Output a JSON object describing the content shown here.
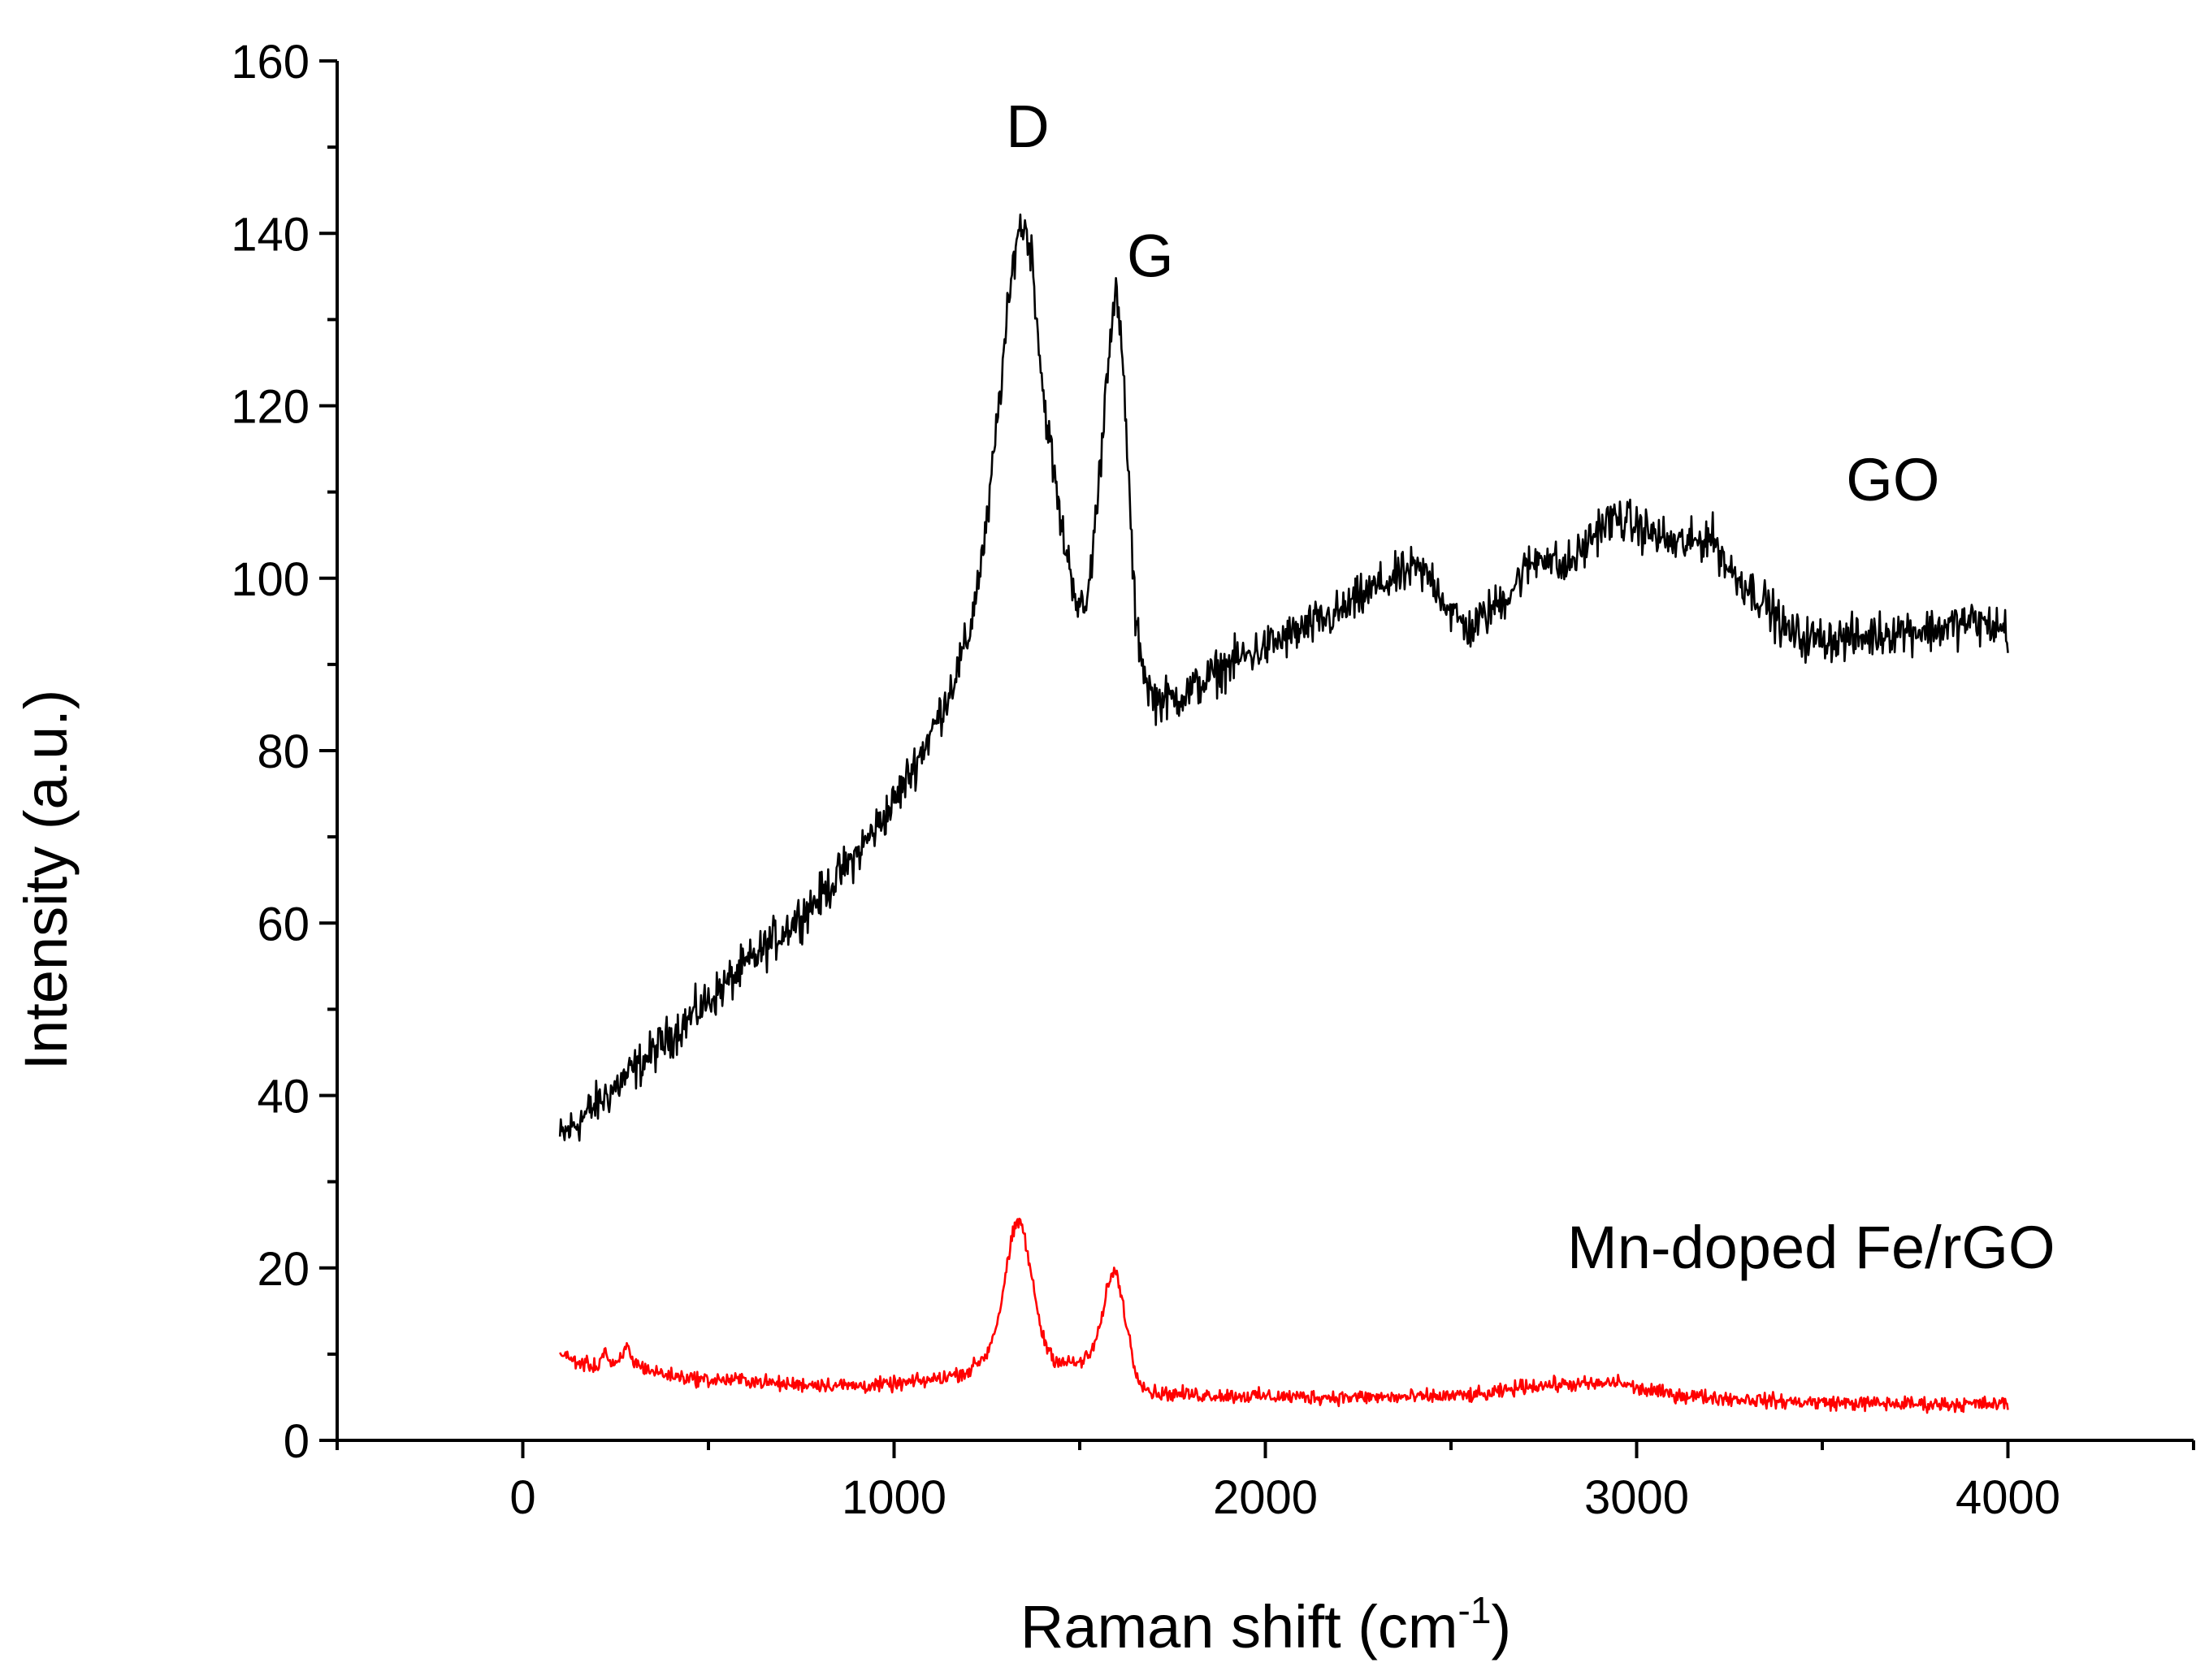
{
  "chart_data": {
    "type": "line",
    "title": "",
    "xlabel": "Raman shift (cm",
    "xlabel_superscript": "-1",
    "xlabel_suffix": ")",
    "ylabel": "Intensity (a.u.)",
    "xlim": [
      -500,
      4500
    ],
    "ylim": [
      0,
      160
    ],
    "x_ticks": [
      0,
      1000,
      2000,
      3000,
      4000
    ],
    "x_tick_labels": [
      "0",
      "1000",
      "2000",
      "3000",
      "4000"
    ],
    "x_minor_ticks": [
      -500,
      500,
      1500,
      2500,
      3500,
      4500
    ],
    "y_ticks": [
      0,
      20,
      40,
      60,
      80,
      100,
      120,
      140,
      160
    ],
    "y_tick_labels": [
      "0",
      "20",
      "40",
      "60",
      "80",
      "100",
      "120",
      "140",
      "160"
    ],
    "y_minor_ticks": [
      10,
      30,
      50,
      70,
      90,
      110,
      130,
      150
    ],
    "grid": false,
    "series": [
      {
        "name": "GO",
        "color": "#000000",
        "x": [
          100,
          200,
          300,
          400,
          500,
          600,
          700,
          800,
          900,
          1000,
          1100,
          1150,
          1200,
          1250,
          1300,
          1330,
          1350,
          1370,
          1400,
          1450,
          1500,
          1520,
          1550,
          1580,
          1600,
          1620,
          1650,
          1680,
          1700,
          1750,
          1800,
          1900,
          2000,
          2100,
          2200,
          2300,
          2350,
          2400,
          2450,
          2500,
          2550,
          2600,
          2650,
          2700,
          2750,
          2800,
          2850,
          2900,
          2950,
          3000,
          3050,
          3100,
          3150,
          3200,
          3250,
          3300,
          3350,
          3400,
          3450,
          3500,
          3600,
          3700,
          3800,
          3900,
          4000
        ],
        "values": [
          35,
          39,
          43,
          47,
          51,
          55,
          59,
          63,
          68,
          74,
          82,
          87,
          93,
          106,
          128,
          140,
          141,
          138,
          122,
          106,
          96,
          97,
          110,
          128,
          133,
          122,
          95,
          88,
          86,
          86,
          87,
          90,
          92,
          94,
          96,
          99,
          100,
          101,
          100,
          96,
          94,
          96,
          98,
          101,
          103,
          101,
          103,
          106,
          107,
          106,
          105,
          104,
          104,
          105,
          101,
          99,
          97,
          94,
          93,
          93,
          93,
          94,
          94,
          95,
          94
        ],
        "noise_amplitude": 1.8
      },
      {
        "name": "Mn-doped Fe/rGO",
        "color": "#ff0000",
        "x": [
          100,
          150,
          200,
          220,
          240,
          260,
          280,
          300,
          350,
          400,
          500,
          600,
          700,
          800,
          900,
          1000,
          1100,
          1200,
          1250,
          1280,
          1300,
          1320,
          1340,
          1350,
          1370,
          1400,
          1430,
          1460,
          1500,
          1530,
          1560,
          1580,
          1600,
          1620,
          1650,
          1680,
          1700,
          1800,
          2000,
          2200,
          2400,
          2600,
          2700,
          2800,
          2900,
          2950,
          3000,
          3100,
          3200,
          3400,
          3600,
          3800,
          4000
        ],
        "values": [
          10,
          9,
          8.5,
          10.5,
          8.5,
          9,
          11,
          9,
          8,
          7.5,
          7,
          7,
          6.5,
          6.5,
          6.3,
          6.5,
          7,
          8,
          10,
          14,
          19,
          24,
          25.5,
          24,
          19,
          12,
          9.5,
          9,
          9,
          10,
          14,
          19,
          19.5,
          15,
          8,
          6,
          5.5,
          5.3,
          5.1,
          5,
          5,
          5.3,
          6.3,
          6.5,
          6.5,
          6.8,
          6,
          5.3,
          5,
          4.5,
          4.3,
          4.2,
          4.2
        ],
        "noise_amplitude": 0.6
      }
    ],
    "annotations": [
      {
        "text": "D",
        "x": 1360,
        "y": 150
      },
      {
        "text": "G",
        "x": 1690,
        "y": 135
      },
      {
        "text": "GO",
        "x": 3690,
        "y": 109
      },
      {
        "text": "Mn-doped Fe/rGO",
        "x": 3470,
        "y": 20
      }
    ]
  }
}
